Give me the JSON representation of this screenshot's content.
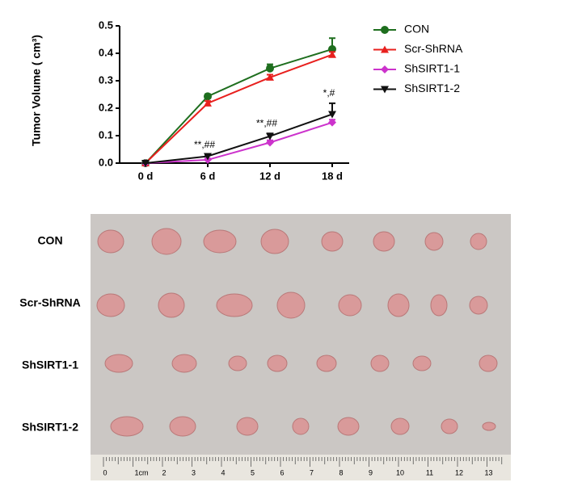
{
  "chart_data": {
    "type": "line",
    "ylabel": "Tumor Volume ( cm³)",
    "categories": [
      "0 d",
      "6 d",
      "12 d",
      "18 d"
    ],
    "ylim": [
      0,
      0.5
    ],
    "yticks": [
      {
        "value": 0,
        "label": "0.0"
      },
      0.1,
      0.2,
      0.3,
      0.4,
      0.5
    ],
    "series": [
      {
        "name": "CON",
        "color": "#1e6e1e",
        "marker": "circle",
        "values": [
          0,
          0.243,
          0.345,
          0.415
        ],
        "errors": [
          0,
          0.008,
          0.015,
          0.04
        ]
      },
      {
        "name": "Scr-ShRNA",
        "color": "#e8201e",
        "marker": "triangle",
        "values": [
          0,
          0.218,
          0.312,
          0.395
        ],
        "errors": [
          0,
          0.008,
          0.01,
          0.01
        ]
      },
      {
        "name": "ShSIRT1-1",
        "color": "#cc33cc",
        "marker": "diamond",
        "values": [
          0,
          0.012,
          0.075,
          0.148
        ],
        "errors": [
          0,
          0.005,
          0.008,
          0.01
        ]
      },
      {
        "name": "ShSIRT1-2",
        "color": "#111111",
        "marker": "triangle-down",
        "values": [
          0,
          0.025,
          0.098,
          0.178
        ],
        "errors": [
          0,
          0.005,
          0.01,
          0.04
        ]
      }
    ],
    "annotations": [
      "**,##",
      "**,##",
      "*,#"
    ]
  },
  "photo": {
    "row_labels": [
      "CON",
      "Scr-ShRNA",
      "ShSIRT1-1",
      "ShSIRT1-2"
    ],
    "ruler_labels": [
      "0",
      "1cm",
      "2",
      "3",
      "4",
      "5",
      "6",
      "7",
      "8",
      "9",
      "10",
      "11",
      "12",
      "13"
    ]
  }
}
